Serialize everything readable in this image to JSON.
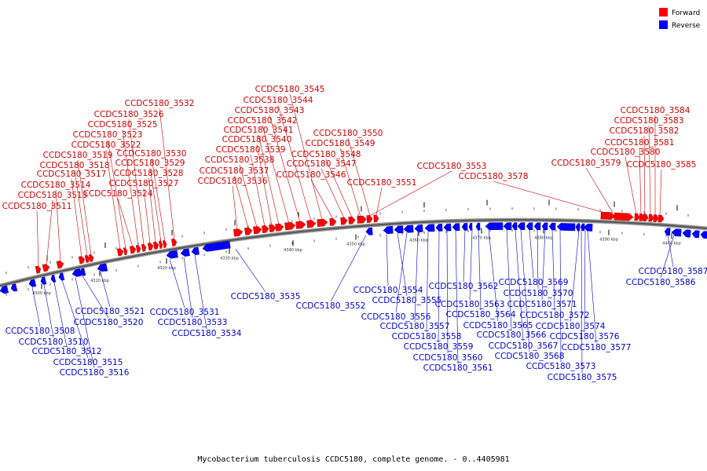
{
  "caption": "Mycobacterium tuberculosis CCDC5180, complete genome. - 0..4405981",
  "legend": {
    "forward": {
      "label": "Forward",
      "color": "#ff0000"
    },
    "reverse": {
      "label": "Reverse",
      "color": "#0000ff"
    }
  },
  "scale_ticks": [
    "4300 kbp",
    "4310 kbp",
    "4320 kbp",
    "4330 kbp",
    "4340 kbp",
    "4350 kbp",
    "4360 kbp",
    "4370 kbp",
    "4380 kbp",
    "4390 kbp",
    "4400 kbp"
  ],
  "forward_genes": [
    "CCDC5180_3511",
    "CCDC5180_3513",
    "CCDC5180_3514",
    "CCDC5180_3517",
    "CCDC5180_3518",
    "CCDC5180_3519",
    "CCDC5180_3522",
    "CCDC5180_3523",
    "CCDC5180_3524",
    "CCDC5180_3525",
    "CCDC5180_3526",
    "CCDC5180_3527",
    "CCDC5180_3528",
    "CCDC5180_3529",
    "CCDC5180_3530",
    "CCDC5180_3532",
    "CCDC5180_3536",
    "CCDC5180_3537",
    "CCDC5180_3538",
    "CCDC5180_3539",
    "CCDC5180_3540",
    "CCDC5180_3541",
    "CCDC5180_3542",
    "CCDC5180_3543",
    "CCDC5180_3544",
    "CCDC5180_3545",
    "CCDC5180_3546",
    "CCDC5180_3547",
    "CCDC5180_3548",
    "CCDC5180_3549",
    "CCDC5180_3550",
    "CCDC5180_3551",
    "CCDC5180_3553",
    "CCDC5180_3578",
    "CCDC5180_3579",
    "CCDC5180_3580",
    "CCDC5180_3581",
    "CCDC5180_3582",
    "CCDC5180_3583",
    "CCDC5180_3584",
    "CCDC5180_3585"
  ],
  "reverse_genes": [
    "CCDC5180_3508",
    "CCDC5180_3510",
    "CCDC5180_3512",
    "CCDC5180_3515",
    "CCDC5180_3516",
    "CCDC5180_3520",
    "CCDC5180_3521",
    "CCDC5180_3531",
    "CCDC5180_3533",
    "CCDC5180_3534",
    "CCDC5180_3535",
    "CCDC5180_3552",
    "CCDC5180_3554",
    "CCDC5180_3555",
    "CCDC5180_3556",
    "CCDC5180_3557",
    "CCDC5180_3558",
    "CCDC5180_3559",
    "CCDC5180_3560",
    "CCDC5180_3561",
    "CCDC5180_3562",
    "CCDC5180_3563",
    "CCDC5180_3564",
    "CCDC5180_3565",
    "CCDC5180_3566",
    "CCDC5180_3567",
    "CCDC5180_3568",
    "CCDC5180_3569",
    "CCDC5180_3570",
    "CCDC5180_3571",
    "CCDC5180_3572",
    "CCDC5180_3573",
    "CCDC5180_3574",
    "CCDC5180_3575",
    "CCDC5180_3576",
    "CCDC5180_3577",
    "CCDC5180_3586",
    "CCDC5180_3587"
  ]
}
